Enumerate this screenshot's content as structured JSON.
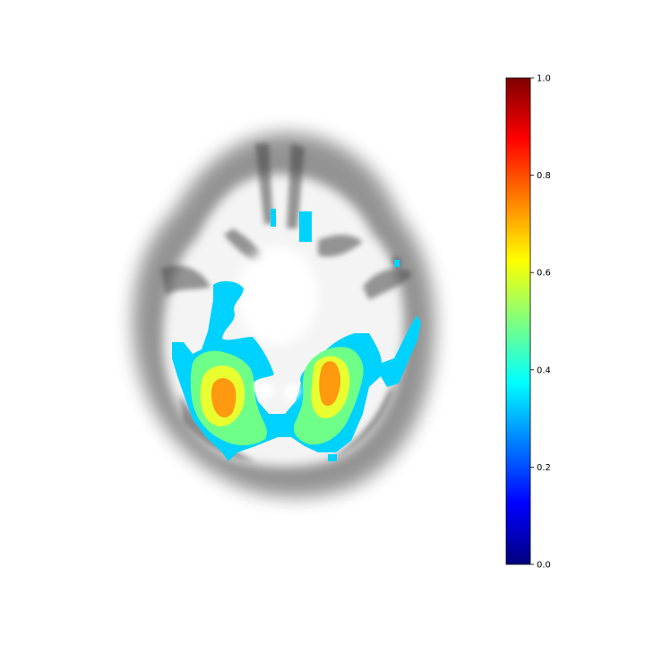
{
  "figure": {
    "kind": "axial brain slice with heat-map overlay",
    "background_color": "#ffffff",
    "anatomy_color": "#3a3a3a"
  },
  "colorbar": {
    "colormap": "jet",
    "range": [
      0.0,
      1.0
    ],
    "ticks": [
      "0.0",
      "0.2",
      "0.4",
      "0.6",
      "0.8",
      "1.0"
    ],
    "stops": [
      "#00007f",
      "#0000ff",
      "#007fff",
      "#00ffff",
      "#7fff7f",
      "#ffff00",
      "#ff7f00",
      "#ff0000",
      "#7f0000"
    ]
  }
}
